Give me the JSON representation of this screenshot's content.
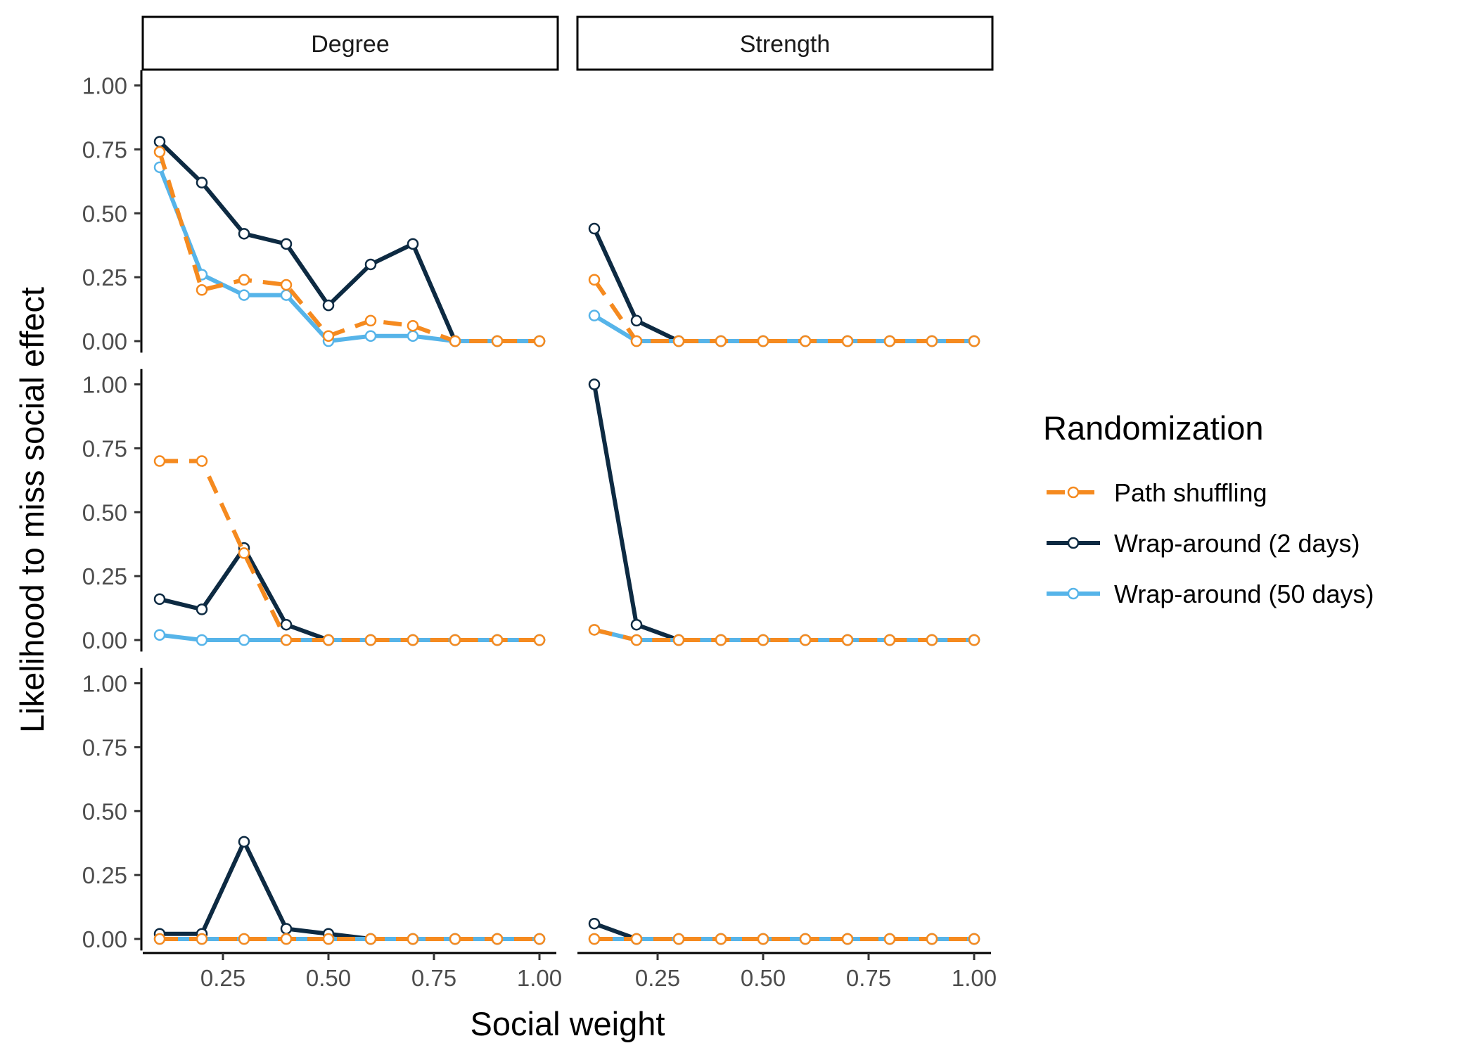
{
  "chart_data": {
    "type": "line",
    "facet_columns": [
      "Degree",
      "Strength"
    ],
    "xlabel": "Social weight",
    "ylabel": "Likelihood to miss social effect",
    "xlim": [
      0.1,
      1.0
    ],
    "ylim": [
      0,
      1.0
    ],
    "x_ticks": [
      "0.25",
      "0.50",
      "0.75",
      "1.00"
    ],
    "y_ticks": [
      "0.00",
      "0.25",
      "0.50",
      "0.75",
      "1.00"
    ],
    "x": [
      0.1,
      0.2,
      0.3,
      0.4,
      0.5,
      0.6,
      0.7,
      0.8,
      0.9,
      1.0
    ],
    "grid": false,
    "legend": {
      "title": "Randomization",
      "position": "right",
      "entries": [
        {
          "name": "Path shuffling",
          "color": "#F58A1F",
          "dash": "dashed"
        },
        {
          "name": "Wrap-around (2 days)",
          "color": "#0D2A42",
          "dash": "solid"
        },
        {
          "name": "Wrap-around (50 days)",
          "color": "#56B4E9",
          "dash": "solid"
        }
      ]
    },
    "panels": [
      {
        "row": 0,
        "col": "Degree",
        "series": [
          {
            "name": "Wrap-around (2 days)",
            "values": [
              0.78,
              0.62,
              0.42,
              0.38,
              0.14,
              0.3,
              0.38,
              0.0,
              0.0,
              0.0
            ]
          },
          {
            "name": "Wrap-around (50 days)",
            "values": [
              0.68,
              0.26,
              0.18,
              0.18,
              0.0,
              0.02,
              0.02,
              0.0,
              0.0,
              0.0
            ]
          },
          {
            "name": "Path shuffling",
            "values": [
              0.74,
              0.2,
              0.24,
              0.22,
              0.02,
              0.08,
              0.06,
              0.0,
              0.0,
              0.0
            ]
          }
        ]
      },
      {
        "row": 0,
        "col": "Strength",
        "series": [
          {
            "name": "Wrap-around (2 days)",
            "values": [
              0.44,
              0.08,
              0.0,
              0.0,
              0.0,
              0.0,
              0.0,
              0.0,
              0.0,
              0.0
            ]
          },
          {
            "name": "Wrap-around (50 days)",
            "values": [
              0.1,
              0.0,
              0.0,
              0.0,
              0.0,
              0.0,
              0.0,
              0.0,
              0.0,
              0.0
            ]
          },
          {
            "name": "Path shuffling",
            "values": [
              0.24,
              0.0,
              0.0,
              0.0,
              0.0,
              0.0,
              0.0,
              0.0,
              0.0,
              0.0
            ]
          }
        ]
      },
      {
        "row": 1,
        "col": "Degree",
        "series": [
          {
            "name": "Wrap-around (2 days)",
            "values": [
              0.16,
              0.12,
              0.36,
              0.06,
              0.0,
              0.0,
              0.0,
              0.0,
              0.0,
              0.0
            ]
          },
          {
            "name": "Wrap-around (50 days)",
            "values": [
              0.02,
              0.0,
              0.0,
              0.0,
              0.0,
              0.0,
              0.0,
              0.0,
              0.0,
              0.0
            ]
          },
          {
            "name": "Path shuffling",
            "values": [
              0.7,
              0.7,
              0.34,
              0.0,
              0.0,
              0.0,
              0.0,
              0.0,
              0.0,
              0.0
            ]
          }
        ]
      },
      {
        "row": 1,
        "col": "Strength",
        "series": [
          {
            "name": "Wrap-around (2 days)",
            "values": [
              1.0,
              0.06,
              0.0,
              0.0,
              0.0,
              0.0,
              0.0,
              0.0,
              0.0,
              0.0
            ]
          },
          {
            "name": "Wrap-around (50 days)",
            "values": [
              0.04,
              0.0,
              0.0,
              0.0,
              0.0,
              0.0,
              0.0,
              0.0,
              0.0,
              0.0
            ]
          },
          {
            "name": "Path shuffling",
            "values": [
              0.04,
              0.0,
              0.0,
              0.0,
              0.0,
              0.0,
              0.0,
              0.0,
              0.0,
              0.0
            ]
          }
        ]
      },
      {
        "row": 2,
        "col": "Degree",
        "series": [
          {
            "name": "Wrap-around (2 days)",
            "values": [
              0.02,
              0.02,
              0.38,
              0.04,
              0.02,
              0.0,
              0.0,
              0.0,
              0.0,
              0.0
            ]
          },
          {
            "name": "Wrap-around (50 days)",
            "values": [
              0.0,
              0.0,
              0.0,
              0.0,
              0.0,
              0.0,
              0.0,
              0.0,
              0.0,
              0.0
            ]
          },
          {
            "name": "Path shuffling",
            "values": [
              0.0,
              0.0,
              0.0,
              0.0,
              0.0,
              0.0,
              0.0,
              0.0,
              0.0,
              0.0
            ]
          }
        ]
      },
      {
        "row": 2,
        "col": "Strength",
        "series": [
          {
            "name": "Wrap-around (2 days)",
            "values": [
              0.06,
              0.0,
              0.0,
              0.0,
              0.0,
              0.0,
              0.0,
              0.0,
              0.0,
              0.0
            ]
          },
          {
            "name": "Wrap-around (50 days)",
            "values": [
              0.0,
              0.0,
              0.0,
              0.0,
              0.0,
              0.0,
              0.0,
              0.0,
              0.0,
              0.0
            ]
          },
          {
            "name": "Path shuffling",
            "values": [
              0.0,
              0.0,
              0.0,
              0.0,
              0.0,
              0.0,
              0.0,
              0.0,
              0.0,
              0.0
            ]
          }
        ]
      }
    ]
  }
}
